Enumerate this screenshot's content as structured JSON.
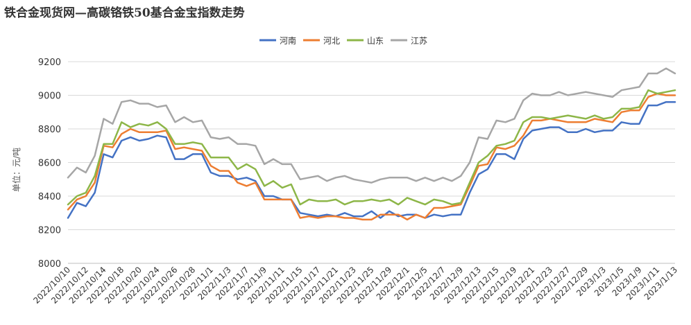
{
  "chart_data": {
    "type": "line",
    "title": "铁合金现货网—高碳铬铁50基合金宝指数走势",
    "ylabel": "单位：元/吨",
    "ylim": [
      8000,
      9200
    ],
    "yticks": [
      8000,
      8200,
      8400,
      8600,
      8800,
      9000,
      9200
    ],
    "grid": true,
    "legend_position": "top-center",
    "x_tick_labels": [
      "2022/10/10",
      "2022/10/12",
      "2022/10/14",
      "2022/10/18",
      "2022/10/20",
      "2022/10/24",
      "2022/10/26",
      "2022/10/28",
      "2022/11/1",
      "2022/11/3",
      "2022/11/7",
      "2022/11/9",
      "2022/11/11",
      "2022/11/15",
      "2022/11/17",
      "2022/11/21",
      "2022/11/23",
      "2022/11/25",
      "2022/11/29",
      "2022/12/1",
      "2022/12/5",
      "2022/12/7",
      "2022/12/9",
      "2022/12/13",
      "2022/12/15",
      "2022/12/19",
      "2022/12/21",
      "2022/12/23",
      "2022/12/27",
      "2022/12/29",
      "2023/1/3",
      "2023/1/5",
      "2023/1/9",
      "2023/1/11",
      "2023/1/13"
    ],
    "series": [
      {
        "name": "河南",
        "color": "#4472C4",
        "values": [
          8270,
          8360,
          8340,
          8420,
          8650,
          8630,
          8730,
          8750,
          8730,
          8740,
          8760,
          8750,
          8620,
          8620,
          8650,
          8650,
          8540,
          8520,
          8520,
          8500,
          8510,
          8490,
          8400,
          8400,
          8380,
          8380,
          8300,
          8290,
          8280,
          8290,
          8280,
          8300,
          8280,
          8280,
          8310,
          8270,
          8310,
          8280,
          8290,
          8290,
          8270,
          8290,
          8280,
          8290,
          8290,
          8420,
          8530,
          8560,
          8650,
          8650,
          8620,
          8740,
          8790,
          8800,
          8810,
          8810,
          8780,
          8780,
          8800,
          8780,
          8790,
          8790,
          8840,
          8830,
          8830,
          8940,
          8940,
          8960,
          8960
        ]
      },
      {
        "name": "河北",
        "color": "#ED7D31",
        "values": [
          8320,
          8380,
          8400,
          8480,
          8700,
          8690,
          8770,
          8800,
          8780,
          8780,
          8780,
          8790,
          8680,
          8690,
          8680,
          8670,
          8580,
          8550,
          8550,
          8480,
          8460,
          8480,
          8380,
          8380,
          8380,
          8380,
          8270,
          8280,
          8270,
          8280,
          8280,
          8270,
          8270,
          8260,
          8260,
          8290,
          8290,
          8290,
          8260,
          8290,
          8270,
          8330,
          8330,
          8340,
          8350,
          8460,
          8580,
          8590,
          8690,
          8680,
          8700,
          8760,
          8850,
          8850,
          8860,
          8850,
          8840,
          8840,
          8840,
          8860,
          8850,
          8840,
          8900,
          8910,
          8910,
          8990,
          9010,
          9000,
          9000
        ]
      },
      {
        "name": "山东",
        "color": "#8DB648",
        "values": [
          8350,
          8400,
          8420,
          8520,
          8710,
          8710,
          8840,
          8810,
          8830,
          8820,
          8840,
          8800,
          8710,
          8710,
          8720,
          8710,
          8630,
          8630,
          8630,
          8560,
          8590,
          8560,
          8460,
          8490,
          8450,
          8470,
          8350,
          8380,
          8370,
          8370,
          8380,
          8350,
          8370,
          8370,
          8380,
          8370,
          8380,
          8350,
          8390,
          8370,
          8350,
          8380,
          8370,
          8350,
          8360,
          8480,
          8600,
          8640,
          8700,
          8710,
          8730,
          8840,
          8870,
          8870,
          8860,
          8870,
          8880,
          8870,
          8860,
          8880,
          8860,
          8870,
          8920,
          8920,
          8930,
          9030,
          9010,
          9020,
          9030
        ]
      },
      {
        "name": "江苏",
        "color": "#A6A6A6",
        "values": [
          8510,
          8570,
          8540,
          8640,
          8860,
          8830,
          8960,
          8970,
          8950,
          8950,
          8930,
          8940,
          8840,
          8870,
          8840,
          8850,
          8750,
          8740,
          8750,
          8710,
          8710,
          8700,
          8590,
          8620,
          8590,
          8590,
          8500,
          8510,
          8520,
          8490,
          8510,
          8520,
          8500,
          8490,
          8480,
          8500,
          8510,
          8510,
          8510,
          8490,
          8510,
          8490,
          8510,
          8490,
          8520,
          8600,
          8750,
          8740,
          8850,
          8840,
          8860,
          8970,
          9010,
          9000,
          9000,
          9020,
          9000,
          9010,
          9020,
          9010,
          9000,
          8990,
          9030,
          9040,
          9050,
          9130,
          9130,
          9160,
          9130
        ]
      }
    ]
  }
}
